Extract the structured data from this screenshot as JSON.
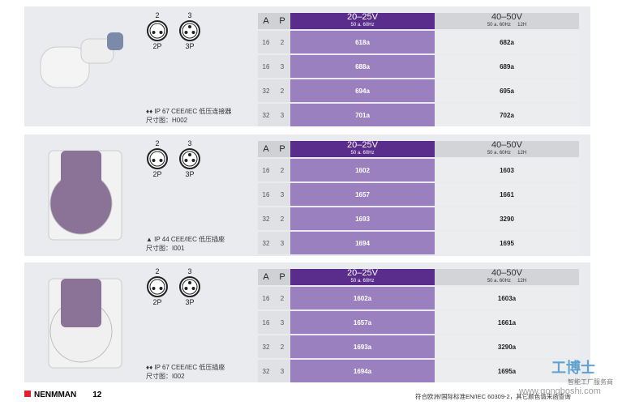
{
  "panels": [
    {
      "desc": "IP 67 CEE/IEC 低压连接器",
      "size": "尺寸图：H002",
      "icon": "water-drops-icon",
      "rows": [
        [
          "16",
          "2",
          "618a",
          "682a"
        ],
        [
          "16",
          "3",
          "688a",
          "689a"
        ],
        [
          "32",
          "2",
          "694a",
          "695a"
        ],
        [
          "32",
          "3",
          "701a",
          "702a"
        ]
      ]
    },
    {
      "desc": "IP 44 CEE/IEC 低压插座",
      "size": "尺寸图：I001",
      "icon": "warning-triangle-icon",
      "rows": [
        [
          "16",
          "2",
          "1602",
          "1603"
        ],
        [
          "16",
          "3",
          "1657",
          "1661"
        ],
        [
          "32",
          "2",
          "1693",
          "3290"
        ],
        [
          "32",
          "3",
          "1694",
          "1695"
        ]
      ]
    },
    {
      "desc": "IP 67 CEE/IEC 低压插座",
      "size": "尺寸图：I002",
      "icon": "water-drops-icon",
      "rows": [
        [
          "16",
          "2",
          "1602a",
          "1603a"
        ],
        [
          "16",
          "3",
          "1657a",
          "1661a"
        ],
        [
          "32",
          "2",
          "1693a",
          "3290a"
        ],
        [
          "32",
          "3",
          "1694a",
          "1695a"
        ]
      ]
    }
  ],
  "header": {
    "a": "A",
    "p": "P",
    "v1": "20–25V",
    "v1sub": "50 a. 60Hz",
    "v2": "40–50V",
    "v2sub": "50 a. 60Hz     12H"
  },
  "pins": {
    "n2": "2",
    "n3": "3",
    "l2": "2P",
    "l3": "3P"
  },
  "footer": {
    "brand": "NENMMAN",
    "page": "12",
    "note": "符合欧洲/国际标准EN/IEC 60309-2，其它颜色请来函查询"
  },
  "watermark": {
    "name": "工博士",
    "tagline": "智能工厂服务商",
    "url": "www.gongboshi.com"
  },
  "colors": {
    "purple_dark": "#5a2d8c",
    "purple": "#9a80bf",
    "brand_red": "#e0202a"
  }
}
